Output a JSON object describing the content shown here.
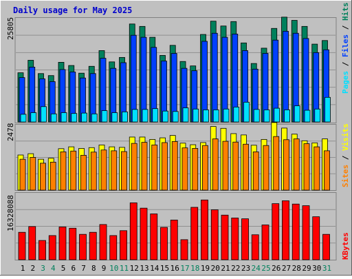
{
  "title": "Daily usage for May 2025",
  "colors": {
    "background": "#c0c0c0",
    "title": "#0000cc",
    "hits": "#00805c",
    "files": "#0040ff",
    "pages": "#00e0ff",
    "visits": "#ffff00",
    "sites": "#ff8000",
    "kbytes": "#ff0000",
    "weekday_label": "#000000",
    "weekend_label": "#00805c"
  },
  "panel_top": {
    "max_label": "25805",
    "legend": [
      "Pages",
      "Files",
      "Hits"
    ],
    "ylim": [
      0,
      25805
    ]
  },
  "panel_mid": {
    "max_label": "2478",
    "legend": [
      "Sites",
      "Visits"
    ],
    "ylim": [
      0,
      2478
    ]
  },
  "panel_bottom": {
    "max_label": "16328088",
    "legend": [
      "KBytes"
    ],
    "ylim": [
      0,
      16328088
    ]
  },
  "chart_data": {
    "type": "bar",
    "title": "Daily usage for May 2025",
    "categories": [
      "1",
      "2",
      "3",
      "4",
      "5",
      "6",
      "7",
      "8",
      "9",
      "10",
      "11",
      "12",
      "13",
      "14",
      "15",
      "16",
      "17",
      "18",
      "19",
      "20",
      "21",
      "22",
      "23",
      "24",
      "25",
      "26",
      "27",
      "28",
      "29",
      "30",
      "31"
    ],
    "weekend_days": [
      3,
      4,
      10,
      11,
      17,
      18,
      24,
      25,
      31
    ],
    "series": [
      {
        "name": "Hits",
        "panel": "top",
        "values": [
          12200,
          15300,
          12000,
          11500,
          14800,
          14000,
          12100,
          13800,
          17700,
          14900,
          16000,
          24300,
          23700,
          21000,
          16500,
          19000,
          15000,
          13900,
          21700,
          25000,
          23800,
          24900,
          19600,
          14500,
          18300,
          23200,
          26000,
          25200,
          23700,
          19300,
          20200
        ]
      },
      {
        "name": "Files",
        "panel": "top",
        "values": [
          11000,
          13600,
          10700,
          10000,
          13000,
          12400,
          10900,
          12000,
          15800,
          13300,
          14700,
          21500,
          21000,
          18500,
          15100,
          17000,
          13300,
          12700,
          20000,
          22000,
          21000,
          21800,
          17700,
          13100,
          17000,
          20300,
          22500,
          22000,
          20700,
          17200,
          17900
        ]
      },
      {
        "name": "Pages",
        "panel": "top",
        "values": [
          1900,
          2300,
          3800,
          2000,
          2300,
          2100,
          2200,
          2000,
          2800,
          2300,
          2500,
          3100,
          3100,
          3300,
          2700,
          2600,
          3500,
          3200,
          3000,
          3000,
          3200,
          3700,
          4900,
          3100,
          3000,
          3400,
          3000,
          4000,
          2900,
          3200,
          6100
        ]
      },
      {
        "name": "Visits",
        "panel": "mid",
        "values": [
          1330,
          1380,
          1170,
          1210,
          1570,
          1640,
          1580,
          1610,
          1710,
          1640,
          1620,
          2010,
          2010,
          1920,
          1980,
          2070,
          1780,
          1720,
          1800,
          2410,
          2340,
          2140,
          2090,
          1700,
          1920,
          2560,
          2350,
          2120,
          1870,
          1790,
          1940
        ]
      },
      {
        "name": "Sites",
        "panel": "mid",
        "values": [
          1170,
          1240,
          1020,
          1060,
          1450,
          1480,
          1320,
          1440,
          1520,
          1490,
          1460,
          1770,
          1810,
          1710,
          1800,
          1840,
          1600,
          1580,
          1690,
          1940,
          1850,
          1820,
          1740,
          1450,
          1690,
          2030,
          1910,
          1940,
          1760,
          1640,
          1490
        ]
      },
      {
        "name": "KBytes",
        "panel": "bottom",
        "values": [
          6700000,
          8100000,
          4700000,
          5900000,
          8000000,
          7700000,
          6200000,
          6700000,
          8600000,
          5900000,
          7100000,
          13900000,
          12600000,
          11200000,
          7900000,
          9700000,
          4900000,
          12800000,
          14600000,
          12200000,
          10900000,
          10200000,
          10000000,
          6100000,
          8500000,
          13700000,
          14400000,
          13600000,
          13200000,
          10500000,
          6200000
        ]
      }
    ]
  }
}
